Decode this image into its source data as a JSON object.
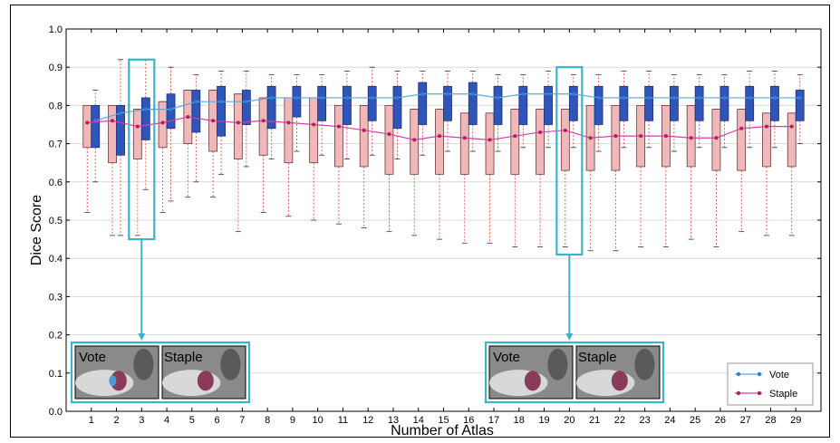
{
  "chart_data": {
    "type": "box",
    "xlabel": "Number of Atlas",
    "ylabel": "Dice Score",
    "ylim": [
      0,
      1.0
    ],
    "yticks": [
      "0.0",
      "0.1",
      "0.2",
      "0.3",
      "0.4",
      "0.5",
      "0.6",
      "0.7",
      "0.8",
      "0.9",
      "1.0"
    ],
    "categories": [
      "1",
      "2",
      "3",
      "4",
      "5",
      "6",
      "7",
      "8",
      "9",
      "10",
      "11",
      "12",
      "13",
      "14",
      "15",
      "16",
      "17",
      "18",
      "19",
      "20",
      "21",
      "22",
      "23",
      "24",
      "25",
      "26",
      "27",
      "28",
      "29"
    ],
    "grid": "horizontal",
    "legend_position": "bottom-right",
    "series": [
      {
        "name": "Vote",
        "color": "#2f55b8",
        "line_color": "#5ba8dc",
        "box_q1": [
          0.69,
          0.67,
          0.71,
          0.74,
          0.73,
          0.72,
          0.75,
          0.74,
          0.77,
          0.76,
          0.75,
          0.76,
          0.74,
          0.75,
          0.76,
          0.75,
          0.75,
          0.75,
          0.75,
          0.76,
          0.75,
          0.76,
          0.76,
          0.76,
          0.76,
          0.76,
          0.76,
          0.76,
          0.76
        ],
        "box_q3": [
          0.8,
          0.8,
          0.82,
          0.83,
          0.84,
          0.85,
          0.84,
          0.85,
          0.85,
          0.85,
          0.85,
          0.85,
          0.85,
          0.86,
          0.85,
          0.86,
          0.85,
          0.85,
          0.85,
          0.85,
          0.85,
          0.85,
          0.85,
          0.85,
          0.85,
          0.85,
          0.85,
          0.85,
          0.84
        ],
        "median": [
          0.76,
          0.78,
          0.79,
          0.79,
          0.81,
          0.81,
          0.81,
          0.82,
          0.82,
          0.82,
          0.82,
          0.82,
          0.82,
          0.83,
          0.83,
          0.83,
          0.82,
          0.83,
          0.83,
          0.83,
          0.82,
          0.82,
          0.82,
          0.82,
          0.82,
          0.82,
          0.82,
          0.82,
          0.82
        ],
        "whisker_low": [
          0.6,
          0.46,
          0.58,
          0.55,
          0.6,
          0.62,
          0.64,
          0.66,
          0.68,
          0.67,
          0.66,
          0.67,
          0.66,
          0.67,
          0.68,
          0.68,
          0.68,
          0.69,
          0.69,
          0.69,
          0.68,
          0.69,
          0.69,
          0.68,
          0.69,
          0.69,
          0.69,
          0.69,
          0.7
        ],
        "whisker_high": [
          0.84,
          0.92,
          0.92,
          0.9,
          0.88,
          0.89,
          0.89,
          0.88,
          0.88,
          0.88,
          0.89,
          0.9,
          0.89,
          0.89,
          0.89,
          0.89,
          0.88,
          0.88,
          0.89,
          0.88,
          0.88,
          0.89,
          0.89,
          0.88,
          0.88,
          0.88,
          0.89,
          0.89,
          0.88
        ]
      },
      {
        "name": "Staple",
        "color": "#f0b8b8",
        "line_color": "#d43fa8",
        "box_q1": [
          0.69,
          0.65,
          0.66,
          0.69,
          0.7,
          0.68,
          0.66,
          0.67,
          0.65,
          0.65,
          0.64,
          0.64,
          0.62,
          0.62,
          0.62,
          0.62,
          0.62,
          0.62,
          0.62,
          0.63,
          0.63,
          0.63,
          0.64,
          0.64,
          0.64,
          0.63,
          0.63,
          0.64,
          0.64
        ],
        "box_q3": [
          0.8,
          0.8,
          0.79,
          0.81,
          0.84,
          0.84,
          0.83,
          0.82,
          0.82,
          0.82,
          0.8,
          0.8,
          0.8,
          0.79,
          0.79,
          0.78,
          0.78,
          0.79,
          0.79,
          0.79,
          0.8,
          0.8,
          0.8,
          0.8,
          0.8,
          0.79,
          0.79,
          0.78,
          0.78
        ],
        "median": [
          0.755,
          0.76,
          0.745,
          0.755,
          0.77,
          0.76,
          0.755,
          0.76,
          0.755,
          0.75,
          0.745,
          0.735,
          0.725,
          0.71,
          0.72,
          0.715,
          0.71,
          0.72,
          0.73,
          0.735,
          0.715,
          0.72,
          0.72,
          0.72,
          0.715,
          0.715,
          0.74,
          0.745,
          0.745
        ],
        "whisker_low": [
          0.52,
          0.46,
          0.46,
          0.52,
          0.56,
          0.56,
          0.47,
          0.52,
          0.51,
          0.5,
          0.49,
          0.48,
          0.47,
          0.46,
          0.45,
          0.44,
          0.44,
          0.43,
          0.43,
          0.43,
          0.42,
          0.42,
          0.43,
          0.43,
          0.45,
          0.43,
          0.47,
          0.46,
          0.46
        ]
      }
    ]
  },
  "insets": [
    {
      "label_left": "Vote",
      "label_right": "Staple"
    },
    {
      "label_left": "Vote",
      "label_right": "Staple"
    }
  ],
  "legend": {
    "vote": "Vote",
    "staple": "Staple"
  },
  "colors": {
    "highlight": "#3ab4c8",
    "grid": "#d9d9d9"
  }
}
